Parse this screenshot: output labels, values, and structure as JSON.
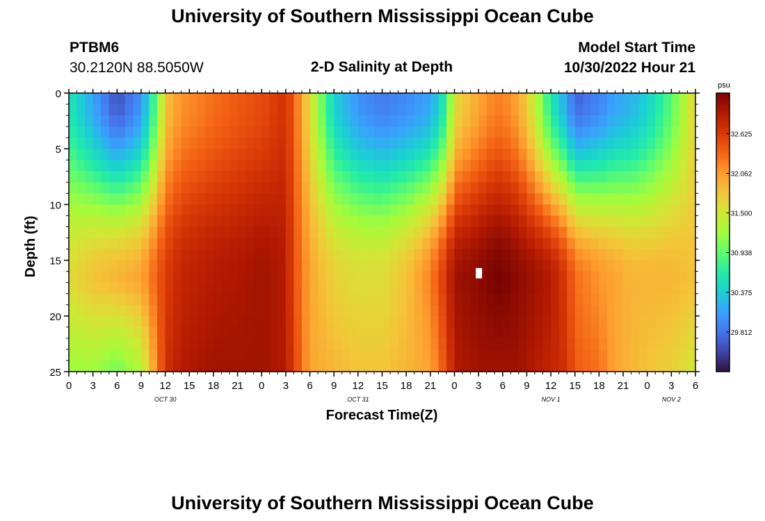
{
  "header": {
    "title": "University of Southern Mississippi Ocean Cube",
    "station_id": "PTBM6",
    "coords": "30.2120N  88.5050W",
    "subtitle": "2-D Salinity at Depth",
    "model_start_label": "Model Start Time",
    "model_start_value": "10/30/2022 Hour 21"
  },
  "footer": {
    "title": "University of Southern Mississippi Ocean Cube"
  },
  "chart_data": {
    "type": "heatmap",
    "title": "2-D Salinity at Depth",
    "xlabel": "Forecast Time(Z)",
    "ylabel": "Depth (ft)",
    "y_ticks": [
      0,
      5,
      10,
      15,
      20,
      25
    ],
    "ylim": [
      0,
      25
    ],
    "x_ticks": [
      "0",
      "3",
      "6",
      "9",
      "12",
      "15",
      "18",
      "21",
      "0",
      "3",
      "6",
      "9",
      "12",
      "15",
      "18",
      "21",
      "0",
      "3",
      "6",
      "9",
      "12",
      "15",
      "18",
      "21",
      "0",
      "3",
      "6"
    ],
    "x_range_hours": [
      0,
      78
    ],
    "day_labels": [
      {
        "label": "OCT 30",
        "hour": 12
      },
      {
        "label": "OCT 31",
        "hour": 36
      },
      {
        "label": "NOV 1",
        "hour": 60
      },
      {
        "label": "NOV 2",
        "hour": 75
      }
    ],
    "colorbar": {
      "unit": "psu",
      "min": 29.25,
      "max": 33.2,
      "ticks": [
        "32.625",
        "32.062",
        "31.500",
        "30.938",
        "30.375",
        "29.812"
      ],
      "colors": [
        "#30123b",
        "#4145ab",
        "#4675ed",
        "#39a2fc",
        "#1bcfd4",
        "#24eca6",
        "#61fc6c",
        "#a4fc3b",
        "#d1e834",
        "#f3c63a",
        "#fe9b2d",
        "#f36315",
        "#d93806",
        "#b11901",
        "#7a0403"
      ]
    },
    "series_profile": {
      "hours": [
        0,
        3,
        6,
        9,
        11,
        12,
        14,
        18,
        22,
        24,
        27,
        28,
        30,
        33,
        36,
        39,
        42,
        45,
        47,
        48,
        51,
        53,
        54,
        56,
        58,
        60,
        62,
        63,
        66,
        68,
        70,
        72,
        75,
        78
      ],
      "surface_psu": [
        30.6,
        30.1,
        29.6,
        30.0,
        31.0,
        31.8,
        32.1,
        32.3,
        32.45,
        32.5,
        32.7,
        32.4,
        31.6,
        30.4,
        30.0,
        29.85,
        29.95,
        30.1,
        30.7,
        31.6,
        32.0,
        32.2,
        32.2,
        32.0,
        31.4,
        30.6,
        30.1,
        29.7,
        29.9,
        30.1,
        30.2,
        30.4,
        30.9,
        31.7
      ],
      "mid_psu": [
        31.6,
        31.8,
        31.9,
        32.0,
        32.4,
        32.6,
        32.8,
        32.9,
        32.95,
        33.0,
        32.9,
        32.5,
        32.0,
        31.7,
        31.6,
        31.6,
        31.8,
        32.2,
        32.7,
        33.0,
        33.1,
        33.2,
        33.2,
        33.1,
        33.0,
        32.9,
        32.6,
        32.3,
        32.1,
        32.0,
        31.9,
        31.9,
        31.9,
        31.8
      ],
      "bottom_psu": [
        31.2,
        31.2,
        31.0,
        31.3,
        32.2,
        32.7,
        32.9,
        33.0,
        33.0,
        33.0,
        32.9,
        32.6,
        32.0,
        31.9,
        31.8,
        31.8,
        31.9,
        32.0,
        32.5,
        32.9,
        33.0,
        33.0,
        33.0,
        33.0,
        32.9,
        32.8,
        32.7,
        32.4,
        32.3,
        32.0,
        31.9,
        31.8,
        31.7,
        31.5
      ]
    },
    "marker": {
      "hour": 51,
      "depth_ft": 16.2
    }
  }
}
